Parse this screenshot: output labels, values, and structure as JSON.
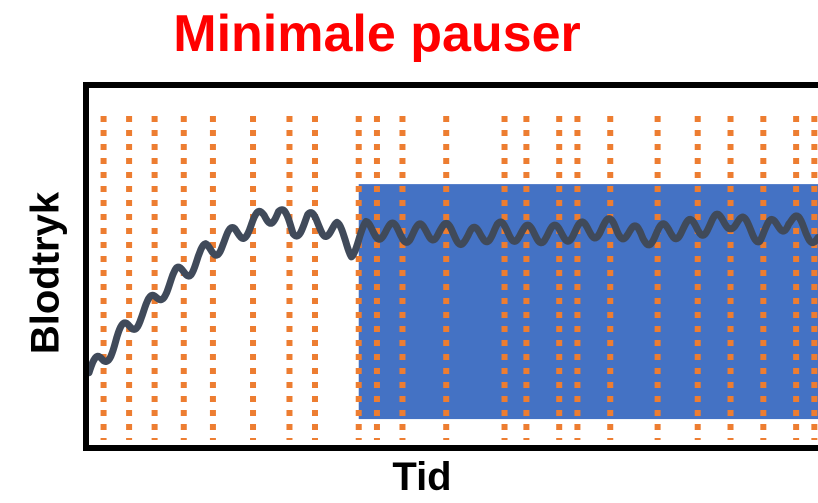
{
  "title": "Minimale pauser",
  "chart_data": {
    "type": "line",
    "title": "Minimale pauser",
    "xlabel": "Tid",
    "ylabel": "Blodtryk",
    "x_ticks": "none",
    "y_ticks": "none",
    "shaded_region": {
      "x_start": 0.37,
      "x_end": 1.0,
      "y_low": 0.07,
      "y_high": 0.73,
      "color": "#4472c4"
    },
    "pause_markers": {
      "color": "#ed7d31",
      "style": "dotted vertical lines",
      "x": [
        0.02,
        0.055,
        0.09,
        0.13,
        0.17,
        0.225,
        0.275,
        0.31,
        0.37,
        0.395,
        0.43,
        0.49,
        0.57,
        0.6,
        0.645,
        0.67,
        0.715,
        0.78,
        0.835,
        0.88,
        0.925,
        0.97,
        0.995
      ]
    },
    "series": [
      {
        "color": "#404a5a",
        "x": [
          0.0,
          0.02,
          0.04,
          0.06,
          0.08,
          0.1,
          0.12,
          0.14,
          0.16,
          0.18,
          0.2,
          0.22,
          0.24,
          0.26,
          0.28,
          0.3,
          0.32,
          0.34,
          0.36,
          0.38,
          0.4,
          0.44,
          0.48,
          0.52,
          0.56,
          0.6,
          0.64,
          0.68,
          0.72,
          0.76,
          0.8,
          0.84,
          0.88,
          0.92,
          0.96,
          1.0
        ],
        "y": [
          0.2,
          0.24,
          0.3,
          0.34,
          0.38,
          0.43,
          0.47,
          0.5,
          0.54,
          0.56,
          0.59,
          0.61,
          0.64,
          0.65,
          0.6,
          0.63,
          0.61,
          0.6,
          0.55,
          0.6,
          0.6,
          0.59,
          0.6,
          0.58,
          0.6,
          0.59,
          0.59,
          0.6,
          0.61,
          0.58,
          0.6,
          0.61,
          0.63,
          0.59,
          0.63,
          0.58
        ]
      }
    ],
    "series_style": "wavy oscillating line"
  }
}
